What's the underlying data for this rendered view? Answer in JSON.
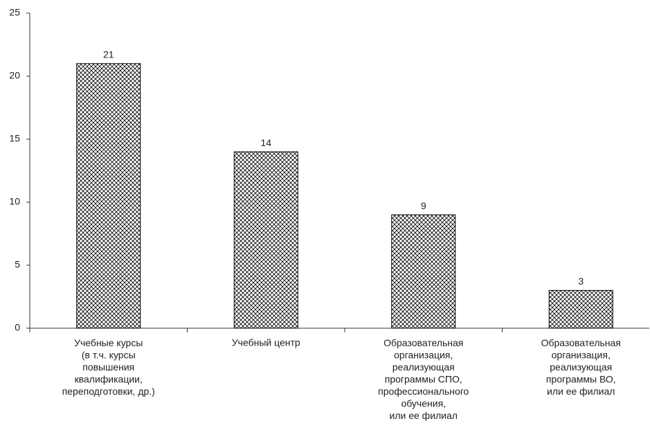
{
  "chart_data": {
    "type": "bar",
    "categories": [
      "Учебные курсы\n(в т.ч. курсы\nповышения\nквалификации,\nпереподготовки, др.)",
      "Учебный центр",
      "Образовательная\nорганизация,\nреализующая\nпрограммы СПО,\nпрофессионального\nобучения,\nили ее филиал",
      "Образовательная\nорганизация,\nреализующая\nпрограммы ВО,\nили ее филиал"
    ],
    "values": [
      21,
      14,
      9,
      3
    ],
    "color": "#000000",
    "ylim": [
      0,
      25
    ],
    "yticks": [
      0,
      5,
      10,
      15,
      20,
      25
    ],
    "grid": false
  }
}
